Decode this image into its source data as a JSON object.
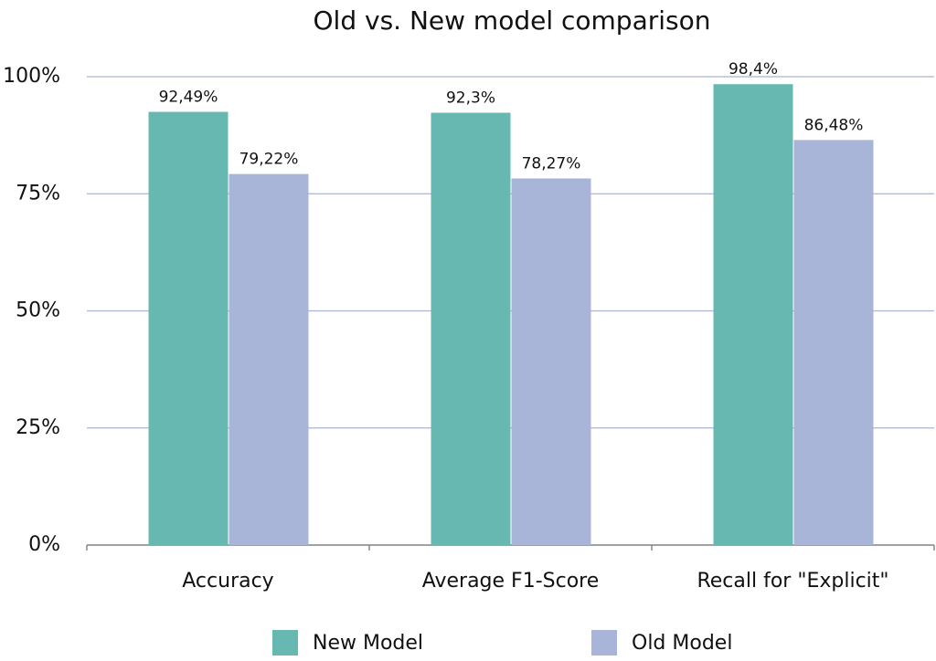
{
  "chart_data": {
    "type": "bar",
    "title": "Old vs. New model comparison",
    "categories": [
      "Accuracy",
      "Average F1-Score",
      "Recall for \"Explicit\""
    ],
    "series": [
      {
        "name": "New Model",
        "color": "#66b8b0",
        "values": [
          92.49,
          92.3,
          98.4
        ],
        "value_labels": [
          "92,49%",
          "92,3%",
          "98,4%"
        ]
      },
      {
        "name": "Old Model",
        "color": "#a8b4d8",
        "values": [
          79.22,
          78.27,
          86.48
        ],
        "value_labels": [
          "79,22%",
          "78,27%",
          "86,48%"
        ]
      }
    ],
    "ylim": [
      0,
      100
    ],
    "yticks": [
      {
        "value": 0,
        "label": "0%"
      },
      {
        "value": 25,
        "label": "25%"
      },
      {
        "value": 50,
        "label": "50%"
      },
      {
        "value": 75,
        "label": "75%"
      },
      {
        "value": 100,
        "label": "100%"
      }
    ],
    "grid": true,
    "legend": "bottom"
  }
}
